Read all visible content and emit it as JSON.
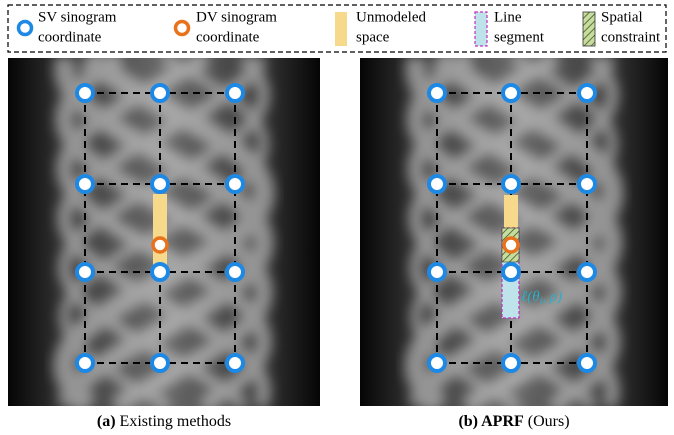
{
  "legend": {
    "items": [
      {
        "lines": [
          "SV sinogram",
          "coordinate"
        ]
      },
      {
        "lines": [
          "DV sinogram",
          "coordinate"
        ]
      },
      {
        "lines": [
          "Unmodeled",
          "space"
        ]
      },
      {
        "lines": [
          "Line",
          "segment"
        ]
      },
      {
        "lines": [
          "Spatial",
          "constraint"
        ]
      }
    ]
  },
  "panels": [
    {
      "caption": {
        "label": "(a)",
        "text": "Existing methods"
      }
    },
    {
      "caption": {
        "label": "(b) APRF",
        "text": "(Ours)"
      },
      "annotation": {
        "main": "ℓ(θ",
        "sub": "i",
        "rest": ", ρ)"
      }
    }
  ]
}
